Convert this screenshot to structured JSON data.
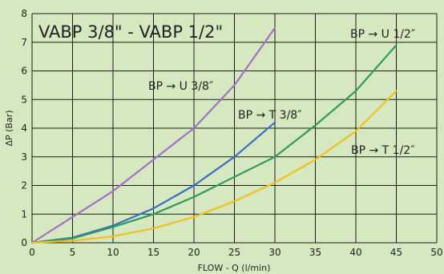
{
  "chart_data": {
    "type": "line",
    "title": "VABP 3/8\" - VABP 1/2\"",
    "xlabel": "FLOW - Q (l/min)",
    "ylabel": "ΔP (Bar)",
    "xlim": [
      0,
      50
    ],
    "ylim": [
      0,
      8
    ],
    "xticks": [
      "0",
      "5",
      "10",
      "15",
      "20",
      "25",
      "30",
      "35",
      "40",
      "45",
      "50"
    ],
    "yticks": [
      "0",
      "1",
      "2",
      "3",
      "4",
      "5",
      "6",
      "7",
      "8"
    ],
    "grid": true,
    "background": "#d5e8bf",
    "series": [
      {
        "name": "BP → U 3/8″",
        "color": "#a46fc6",
        "x": [
          0,
          5,
          10,
          15,
          20,
          25,
          30
        ],
        "y": [
          0,
          0.9,
          1.8,
          2.9,
          4.0,
          5.5,
          7.5
        ]
      },
      {
        "name": "BP → T 3/8″",
        "color": "#3a6fc1",
        "x": [
          0,
          5,
          10,
          15,
          20,
          25,
          30
        ],
        "y": [
          0,
          0.18,
          0.6,
          1.2,
          2.0,
          3.0,
          4.2
        ]
      },
      {
        "name": "BP → U 1/2″",
        "color": "#2f9a5c",
        "x": [
          0,
          5,
          10,
          15,
          20,
          25,
          30,
          35,
          40,
          45
        ],
        "y": [
          0,
          0.15,
          0.55,
          1.0,
          1.6,
          2.3,
          3.0,
          4.1,
          5.3,
          6.9
        ]
      },
      {
        "name": "BP → T 1/2″",
        "color": "#f2c01c",
        "x": [
          0,
          5,
          10,
          15,
          20,
          25,
          30,
          35,
          40,
          45
        ],
        "y": [
          0,
          0.07,
          0.22,
          0.5,
          0.9,
          1.45,
          2.1,
          2.9,
          3.9,
          5.3
        ]
      }
    ]
  }
}
